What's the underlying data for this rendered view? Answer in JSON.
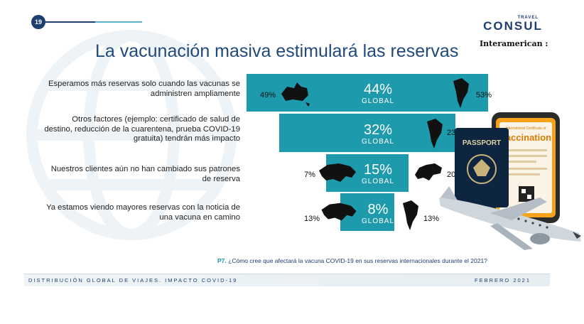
{
  "header": {
    "page_number": "19",
    "title": "La vacunación masiva estimulará las reservas",
    "logo_small": "TRAVEL",
    "logo_main": "CONSUL",
    "logo_sub": "Interamerican"
  },
  "chart_data": {
    "type": "bar",
    "title": "La vacunación masiva estimulará las reservas",
    "categories": [
      "Esperamos más reservas solo cuando las vacunas se administren ampliamente",
      "Otros factores (ejemplo: certificado de salud de destino, reducción de la cuarentena, prueba COVID-19 gratuita) tendrán más impacto",
      "Nuestros clientes aún no han cambiado sus patrones de reserva",
      "Ya estamos viendo mayores reservas con la noticia de una vacuna en camino"
    ],
    "values": [
      44,
      32,
      15,
      8
    ],
    "value_labels": [
      "44%",
      "32%",
      "15%",
      "8%"
    ],
    "global_label": "GLOBAL",
    "regional_highlights": [
      {
        "left": "49%",
        "right": "53%"
      },
      {
        "left": "",
        "right": "23%"
      },
      {
        "left": "7%",
        "right": "20%"
      },
      {
        "left": "13%",
        "right": "13%"
      }
    ]
  },
  "question": {
    "code": "P7.",
    "text": "¿Cómo cree que afectará la vacuna COVID-19 en sus reservas internacionales durante el 2021?"
  },
  "footer": {
    "left": "DISTRIBUCIÓN GLOBAL DE VIAJES. IMPACTO COVID-19",
    "right": "FEBRERO 2021"
  },
  "illustration": {
    "passport_label": "PASSPORT",
    "certificate_title": "Vaccination",
    "certificate_small": "International Certificate of"
  },
  "colors": {
    "bar": "#1d9aac",
    "title": "#21497e",
    "dark": "#1d3e6e"
  }
}
